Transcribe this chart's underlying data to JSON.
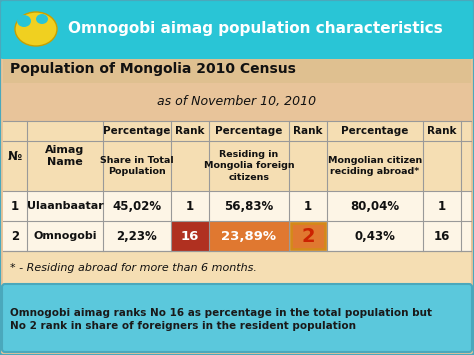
{
  "title": "Omnogobi aimag population characteristics",
  "subtitle": "Population of Mongolia 2010 Census",
  "date_line": "as of November 10, 2010",
  "header_bg": "#29c5d6",
  "body_bg": "#e8c49a",
  "table_header_bg": "#f5deb3",
  "table_data_bg": "#fdf5e6",
  "bottom_note_bg": "#5bc8dc",
  "footnote_bg": "#f5deb3",
  "row_labels": [
    {
      "no": "1",
      "name": "Ulaanbaatar"
    },
    {
      "no": "2",
      "name": "Omnogobi"
    }
  ],
  "data_rows": [
    [
      "45,02%",
      "1",
      "56,83%",
      "1",
      "80,04%",
      "1"
    ],
    [
      "2,23%",
      "16",
      "23,89%",
      "2",
      "0,43%",
      "16"
    ]
  ],
  "footnote": "* - Residing abroad for more than 6 months.",
  "bottom_note_line1": "Omnogobi aimag ranks No 16 as percentage in the total population but",
  "bottom_note_line2": "No 2 rank in share of foreigners in the resident population",
  "border_color": "#4aa8bc",
  "text_color": "#111111",
  "title_color": "#ffffff",
  "bottom_note_color": "#1a1a1a",
  "rank16_bg": "#b03020",
  "pct2_bg": "#e07830",
  "rank2_border": "#d4891a",
  "rank2_color": "#cc2200"
}
